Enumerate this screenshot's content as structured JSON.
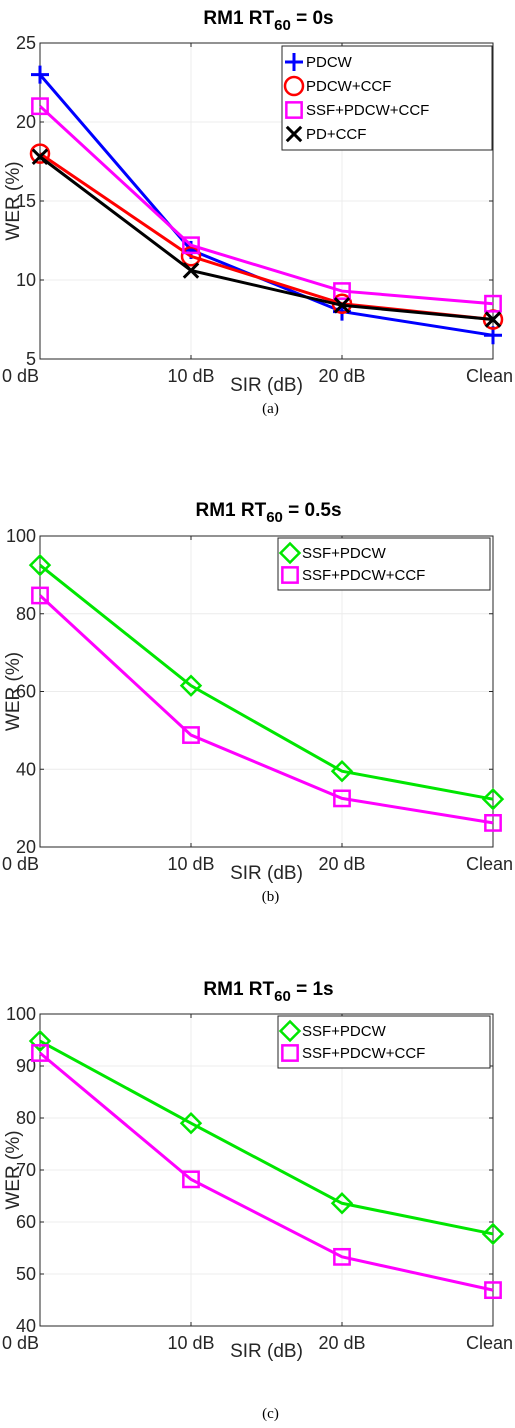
{
  "chart_data": [
    {
      "type": "line",
      "panel": "a",
      "title_prefix": "RM1 RT",
      "title_sub": "60",
      "title_suffix": " = 0s",
      "caption": "(a)",
      "xlabel": "SIR (dB)",
      "ylabel": "WER (%)",
      "categories": [
        "0 dB",
        "10 dB",
        "20 dB",
        "Clean"
      ],
      "ylim": [
        5,
        25
      ],
      "yticks": [
        5,
        10,
        15,
        20,
        25
      ],
      "grid": true,
      "legend_position": "top-right",
      "series": [
        {
          "name": "PDCW",
          "color": "#0000ff",
          "marker": "plus",
          "values": [
            23.0,
            11.9,
            8.0,
            6.5
          ]
        },
        {
          "name": "PDCW+CCF",
          "color": "#ff0000",
          "marker": "circle",
          "values": [
            18.0,
            11.5,
            8.5,
            7.5
          ]
        },
        {
          "name": "SSF+PDCW+CCF",
          "color": "#ff00ff",
          "marker": "square",
          "values": [
            21.0,
            12.2,
            9.3,
            8.5
          ]
        },
        {
          "name": "PD+CCF",
          "color": "#000000",
          "marker": "x",
          "values": [
            17.8,
            10.6,
            8.4,
            7.5
          ]
        }
      ]
    },
    {
      "type": "line",
      "panel": "b",
      "title_prefix": "RM1 RT",
      "title_sub": "60",
      "title_suffix": " = 0.5s",
      "caption": "(b)",
      "xlabel": "SIR (dB)",
      "ylabel": "WER (%)",
      "categories": [
        "0 dB",
        "10 dB",
        "20 dB",
        "Clean"
      ],
      "ylim": [
        20,
        100
      ],
      "yticks": [
        20,
        40,
        60,
        80,
        100
      ],
      "grid": true,
      "legend_position": "top-right",
      "series": [
        {
          "name": "SSF+PDCW",
          "color": "#00e600",
          "marker": "diamond",
          "values": [
            92.5,
            61.5,
            39.5,
            32.3
          ]
        },
        {
          "name": "SSF+PDCW+CCF",
          "color": "#ff00ff",
          "marker": "square",
          "values": [
            84.7,
            48.8,
            32.5,
            26.2
          ]
        }
      ]
    },
    {
      "type": "line",
      "panel": "c",
      "title_prefix": "RM1 RT",
      "title_sub": "60",
      "title_suffix": " = 1s",
      "caption": "(c)",
      "xlabel": "SIR (dB)",
      "ylabel": "WER (%)",
      "categories": [
        "0 dB",
        "10 dB",
        "20 dB",
        "Clean"
      ],
      "ylim": [
        40,
        100
      ],
      "yticks": [
        40,
        50,
        60,
        70,
        80,
        90,
        100
      ],
      "grid": true,
      "legend_position": "top-right",
      "series": [
        {
          "name": "SSF+PDCW",
          "color": "#00e600",
          "marker": "diamond",
          "values": [
            94.8,
            79.0,
            63.6,
            57.7
          ]
        },
        {
          "name": "SSF+PDCW+CCF",
          "color": "#ff00ff",
          "marker": "square",
          "values": [
            92.5,
            68.2,
            53.3,
            46.9
          ]
        }
      ]
    }
  ]
}
